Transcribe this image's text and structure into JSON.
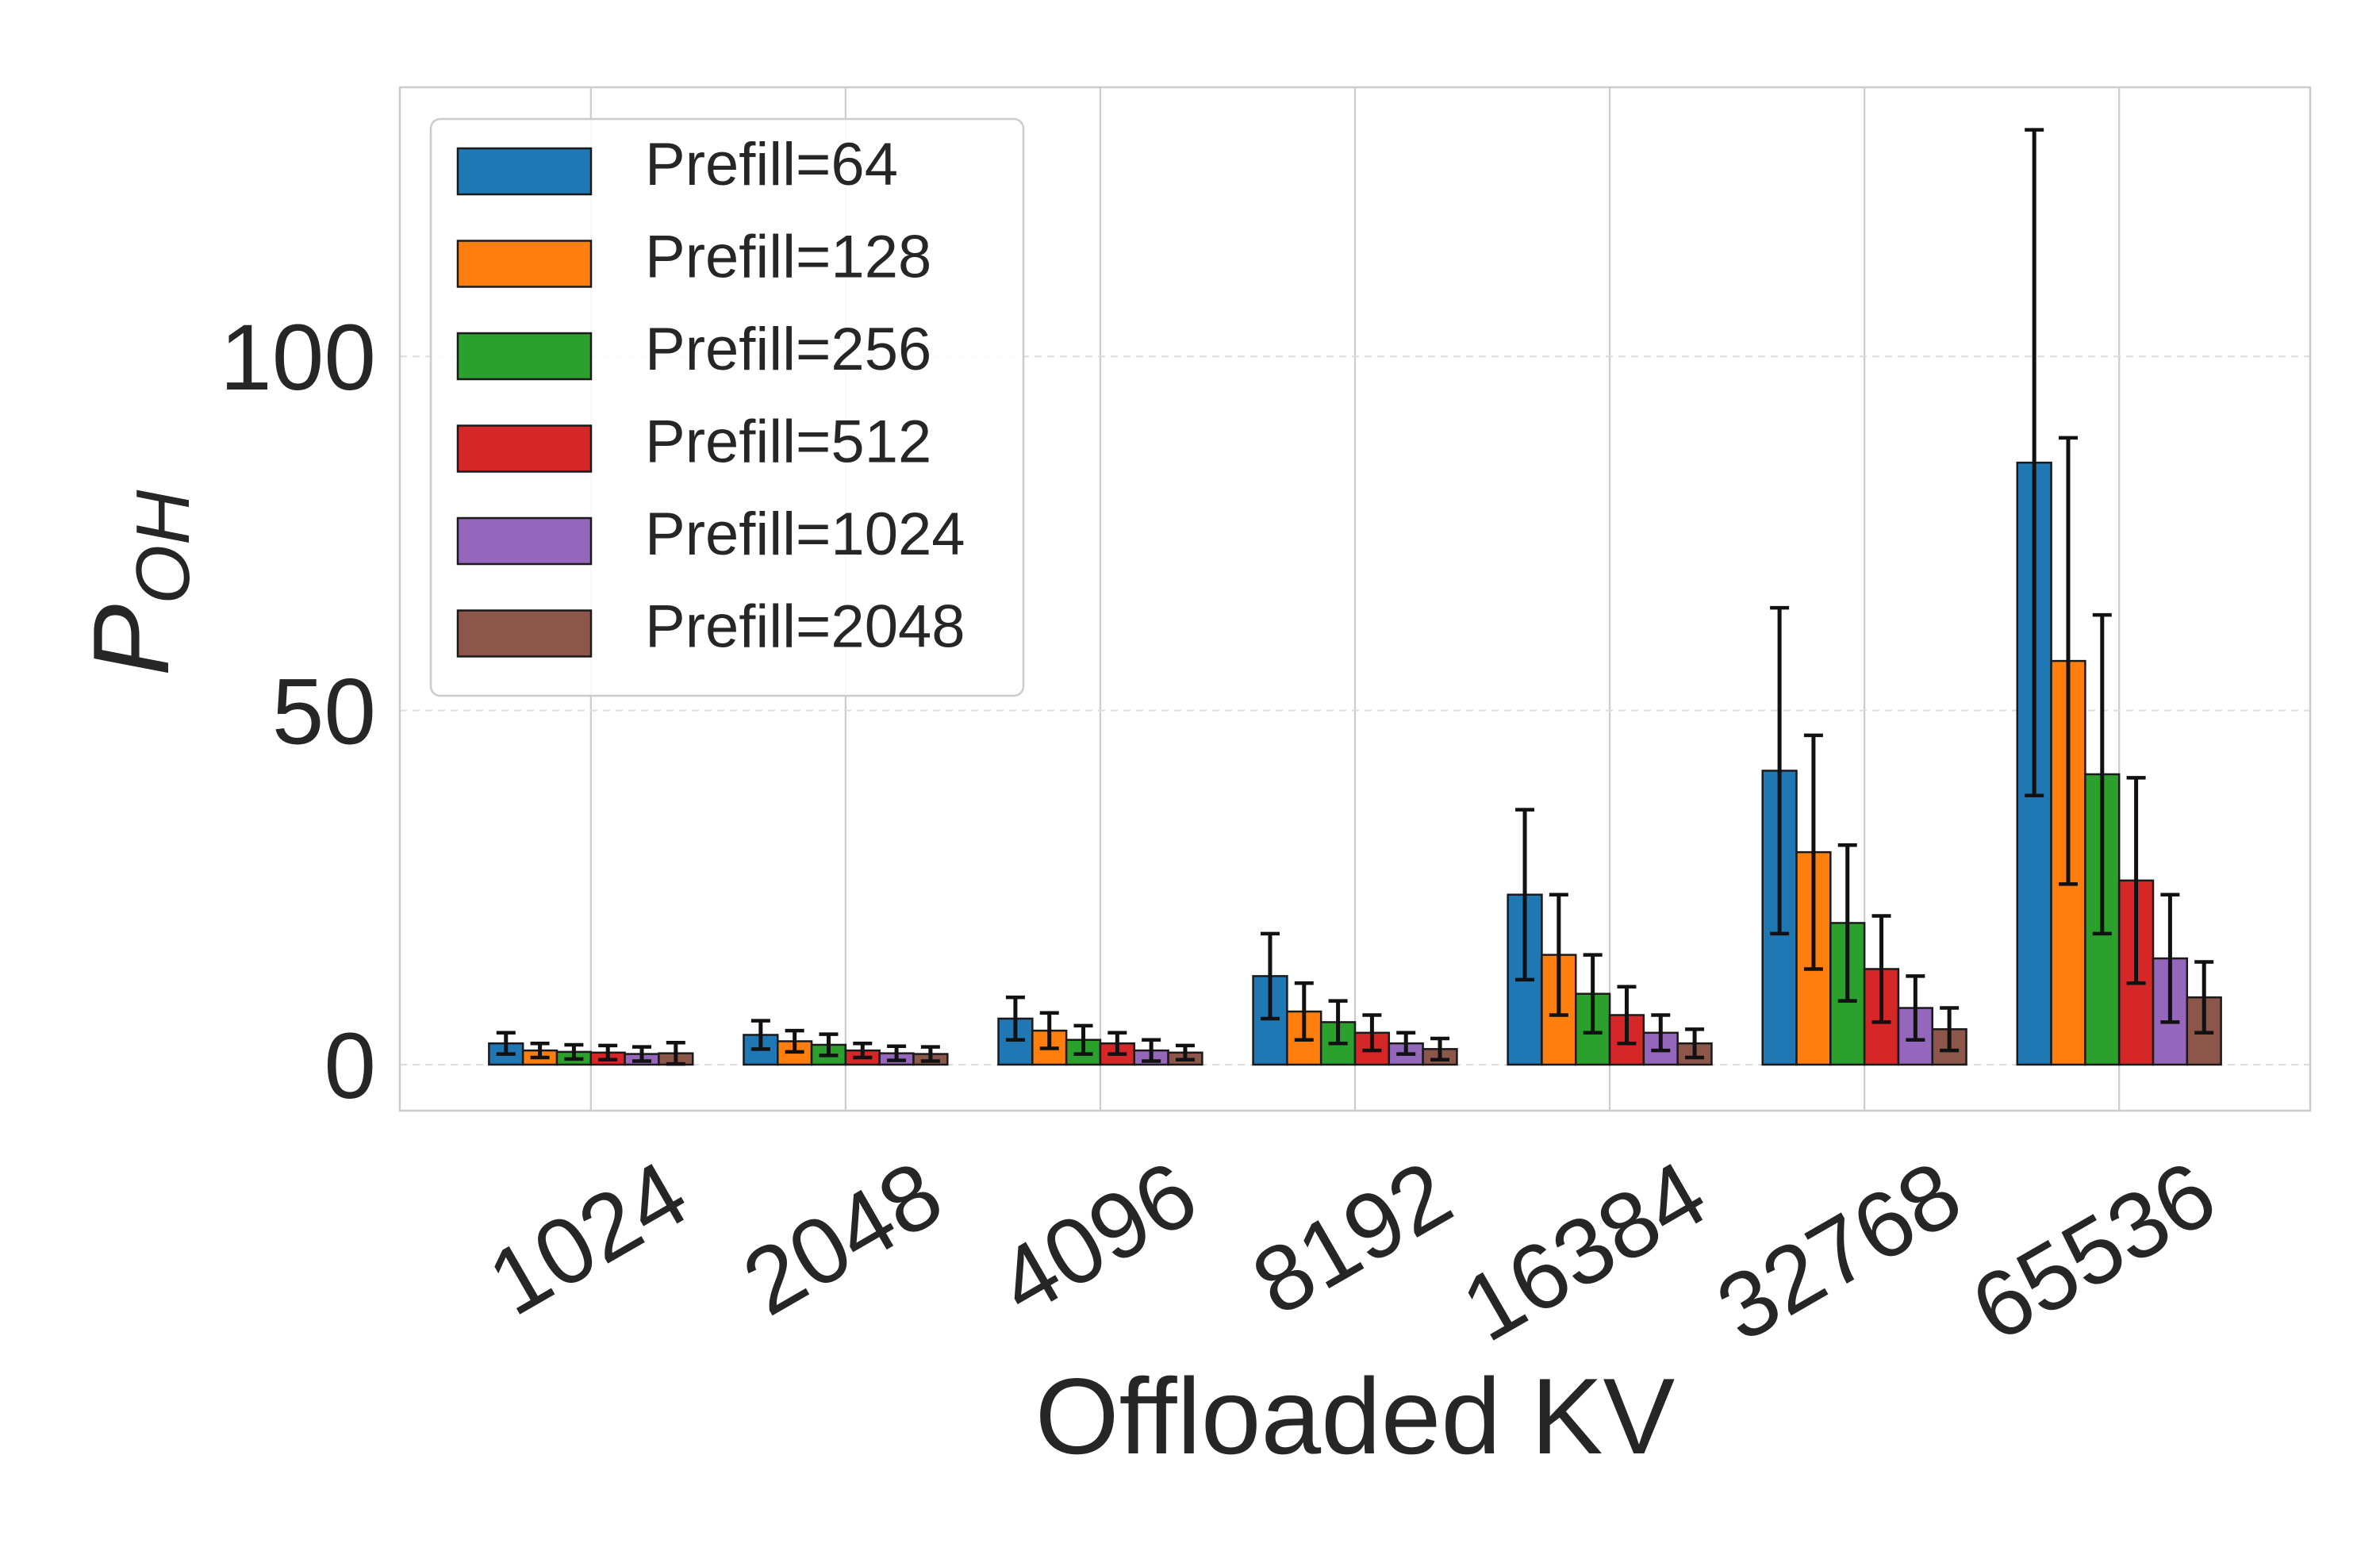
{
  "chart_data": {
    "type": "bar",
    "title": "",
    "xlabel": "Offloaded KV",
    "ylabel": "P",
    "ylabel_subscript": "OH",
    "ylim": [
      -6.5,
      138
    ],
    "yticks": [
      0,
      50,
      100
    ],
    "grid": true,
    "legend_position": "top-left",
    "categories": [
      "1024",
      "2048",
      "4096",
      "8192",
      "16384",
      "32768",
      "65536"
    ],
    "series": [
      {
        "name": "Prefill=64",
        "color": "#1f77b4",
        "values": [
          3.0,
          4.2,
          6.5,
          12.5,
          24.0,
          41.5,
          85.0
        ],
        "errors": [
          1.5,
          2.0,
          3.0,
          6.0,
          12.0,
          23.0,
          47.0
        ]
      },
      {
        "name": "Prefill=128",
        "color": "#ff7f0e",
        "values": [
          2.0,
          3.3,
          4.8,
          7.5,
          15.5,
          30.0,
          57.0
        ],
        "errors": [
          1.0,
          1.5,
          2.5,
          4.0,
          8.5,
          16.5,
          31.5
        ]
      },
      {
        "name": "Prefill=256",
        "color": "#2ca02c",
        "values": [
          1.8,
          2.8,
          3.5,
          6.0,
          10.0,
          20.0,
          41.0
        ],
        "errors": [
          1.0,
          1.5,
          2.0,
          3.0,
          5.5,
          11.0,
          22.5
        ]
      },
      {
        "name": "Prefill=512",
        "color": "#d62728",
        "values": [
          1.7,
          2.0,
          3.0,
          4.5,
          7.0,
          13.5,
          26.0
        ],
        "errors": [
          1.0,
          1.0,
          1.5,
          2.5,
          4.0,
          7.5,
          14.5
        ]
      },
      {
        "name": "Prefill=1024",
        "color": "#9467bd",
        "values": [
          1.5,
          1.6,
          2.0,
          3.0,
          4.5,
          8.0,
          15.0
        ],
        "errors": [
          1.0,
          1.0,
          1.5,
          1.5,
          2.5,
          4.5,
          9.0
        ]
      },
      {
        "name": "Prefill=2048",
        "color": "#8c564b",
        "values": [
          1.6,
          1.5,
          1.7,
          2.2,
          3.0,
          5.0,
          9.5
        ],
        "errors": [
          1.5,
          1.0,
          1.0,
          1.5,
          2.0,
          3.0,
          5.0
        ]
      }
    ]
  }
}
